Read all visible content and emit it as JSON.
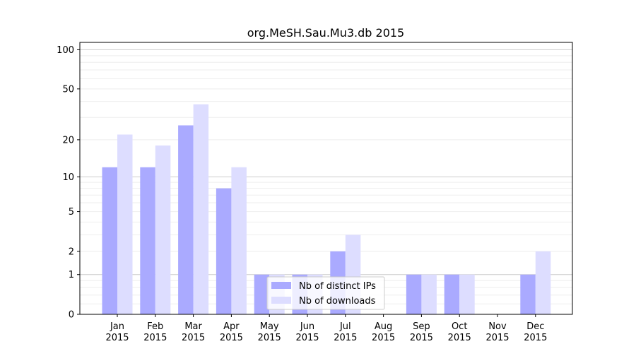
{
  "chart_data": {
    "type": "bar",
    "title": "org.MeSH.Sau.Mu3.db 2015",
    "xlabel": "",
    "ylabel": "",
    "yscale": "log(1+y)",
    "ylim": [
      0,
      116
    ],
    "grid": true,
    "legend_position": "bottom-center",
    "categories": [
      "Jan\n2015",
      "Feb\n2015",
      "Mar\n2015",
      "Apr\n2015",
      "May\n2015",
      "Jun\n2015",
      "Jul\n2015",
      "Aug\n2015",
      "Sep\n2015",
      "Oct\n2015",
      "Nov\n2015",
      "Dec\n2015"
    ],
    "yticks": [
      0,
      1,
      2,
      5,
      10,
      20,
      50,
      100
    ],
    "series": [
      {
        "name": "Nb of distinct IPs",
        "color": "#aaaaff",
        "values": [
          12,
          12,
          26,
          8,
          1,
          1,
          2,
          0,
          1,
          1,
          0,
          1
        ]
      },
      {
        "name": "Nb of downloads",
        "color": "#ddddff",
        "values": [
          22,
          18,
          38,
          12,
          1,
          1,
          3,
          0,
          1,
          1,
          0,
          2
        ]
      }
    ]
  }
}
